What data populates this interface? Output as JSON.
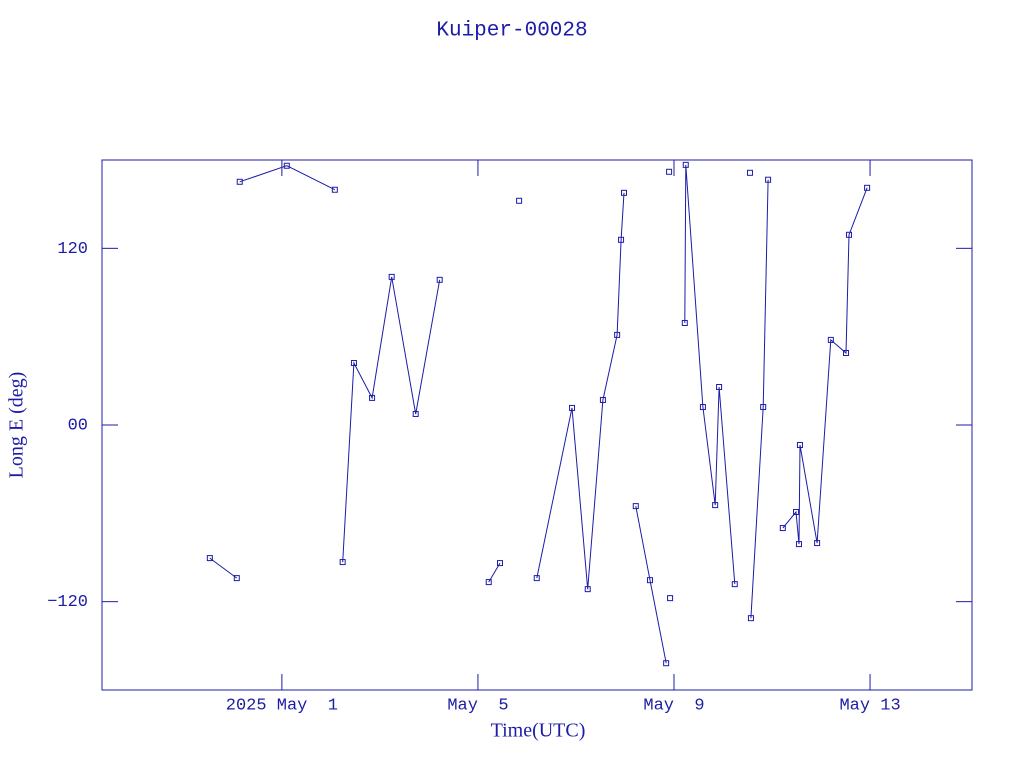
{
  "chart_data": {
    "type": "line",
    "title": "Kuiper-00028",
    "x_label": "Time(UTC)",
    "y_label": "Long E (deg)",
    "xlim": [
      -3.67,
      14.08
    ],
    "ylim": [
      -180,
      180
    ],
    "xticks": [
      {
        "value": 0,
        "label": "2025 May  1"
      },
      {
        "value": 4,
        "label": "May  5"
      },
      {
        "value": 8,
        "label": "May  9"
      },
      {
        "value": 12,
        "label": "May 13"
      }
    ],
    "yticks": [
      {
        "value": -120,
        "label": "−120"
      },
      {
        "value": 0,
        "label": "00"
      },
      120
    ],
    "color": "#1c1ca8",
    "x": [
      -1.47,
      -0.92,
      null,
      -0.86,
      0.1,
      1.08,
      null,
      1.24,
      1.47,
      1.84,
      2.24,
      2.73,
      3.22,
      null,
      4.22,
      4.45,
      null,
      4.84,
      null,
      5.2,
      5.92,
      6.24,
      6.55,
      6.84,
      6.92,
      6.98,
      null,
      7.22,
      7.51,
      7.84,
      null,
      7.9,
      null,
      7.92,
      null,
      8.22,
      8.24,
      8.59,
      8.84,
      8.92,
      9.24,
      null,
      9.55,
      null,
      9.57,
      9.82,
      9.92,
      null,
      10.22,
      10.49,
      10.55,
      10.57,
      10.92,
      11.2,
      11.51,
      11.57,
      11.94
    ],
    "values": [
      -90.4,
      -104.0,
      null,
      165.2,
      176.1,
      159.8,
      null,
      -93.1,
      42.1,
      18.4,
      100.6,
      7.5,
      98.6,
      null,
      -106.7,
      -93.8,
      null,
      152.3,
      null,
      -104.0,
      11.6,
      -111.5,
      17.0,
      61.2,
      125.8,
      157.7,
      null,
      -55.1,
      -105.4,
      -161.8,
      null,
      172.0,
      null,
      -117.6,
      null,
      69.3,
      176.7,
      12.2,
      -54.4,
      25.8,
      -108.1,
      null,
      171.3,
      null,
      -131.2,
      12.2,
      166.6,
      null,
      -70.0,
      -59.1,
      -80.9,
      -13.6,
      -80.2,
      57.8,
      48.9,
      129.2,
      161.1
    ]
  }
}
